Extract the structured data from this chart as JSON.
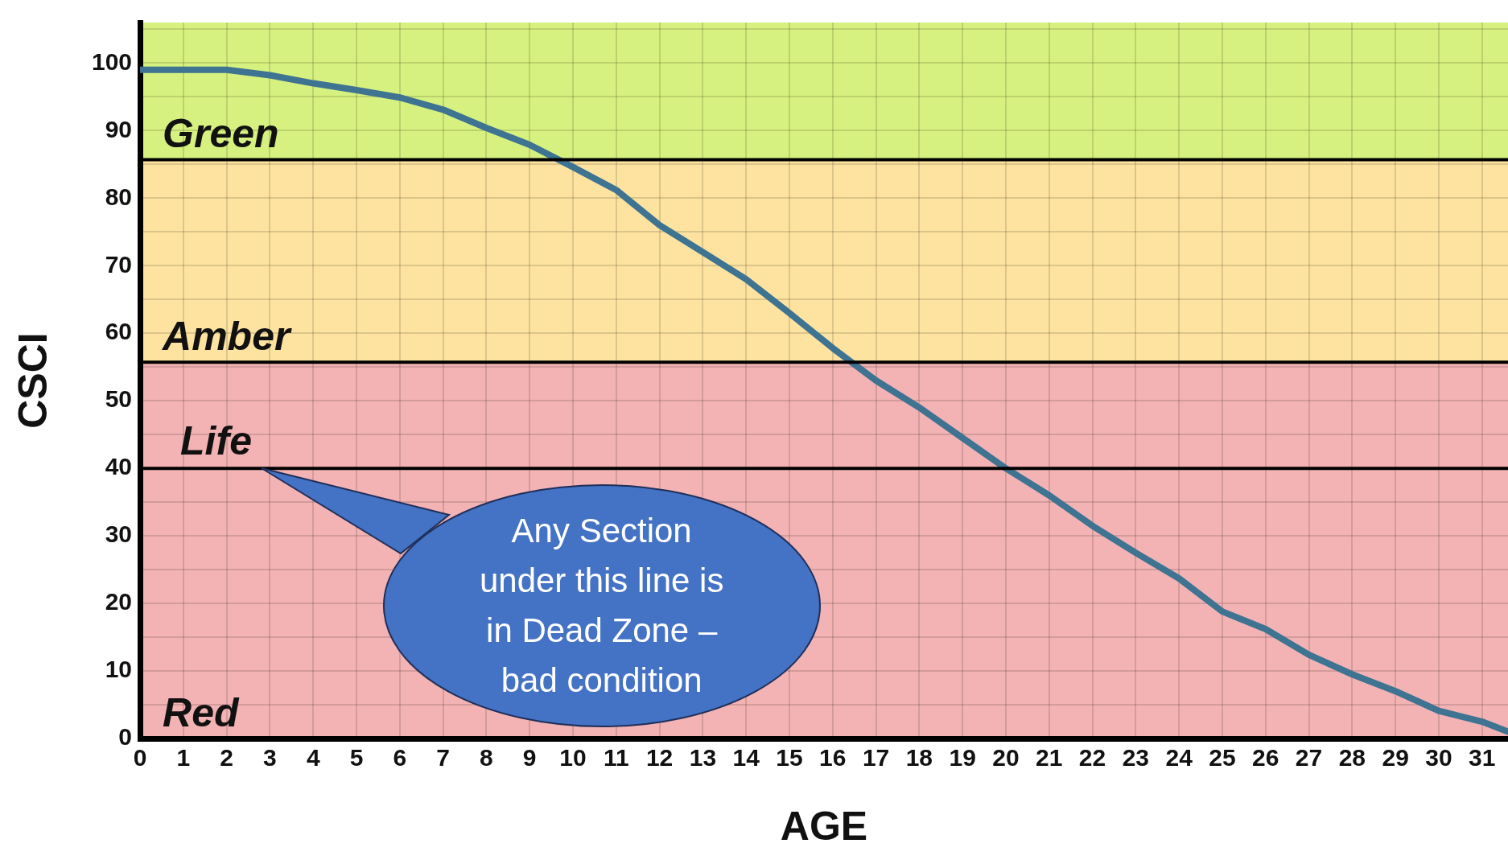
{
  "chart_data": {
    "type": "line",
    "xlabel": "AGE",
    "ylabel": "CSCI",
    "color": "#3e7392",
    "marker": "none",
    "grid": true,
    "x": [
      0,
      2,
      3,
      4,
      5,
      6,
      7,
      8,
      9,
      10,
      11,
      12,
      13,
      14,
      15,
      16,
      17,
      18,
      19,
      20,
      21,
      22,
      23,
      24,
      25,
      26,
      27,
      28,
      29,
      30,
      31,
      31.6
    ],
    "values": [
      99,
      99,
      98.2,
      97,
      96,
      94.9,
      93.1,
      90.4,
      87.9,
      84.6,
      81.2,
      76,
      72,
      68,
      63,
      57.8,
      53,
      49,
      44.5,
      40,
      36,
      31.5,
      27.5,
      23.7,
      18.8,
      16.2,
      12.4,
      9.5,
      7,
      4.1,
      2.5,
      1
    ],
    "xlim": [
      0,
      31.6
    ],
    "xticks": [
      0,
      1,
      2,
      3,
      4,
      5,
      6,
      7,
      8,
      9,
      10,
      11,
      12,
      13,
      14,
      15,
      16,
      17,
      18,
      19,
      20,
      21,
      22,
      23,
      24,
      25,
      26,
      27,
      28,
      29,
      30,
      31
    ],
    "ylim": [
      0,
      106
    ],
    "yticks": [
      0,
      {
        "value": 5,
        "label": null
      },
      10,
      {
        "value": 15,
        "label": null
      },
      20,
      {
        "value": 25,
        "label": null
      },
      30,
      {
        "value": 35,
        "label": null
      },
      40,
      {
        "value": 45,
        "label": null
      },
      50,
      {
        "value": 55,
        "label": null
      },
      60,
      {
        "value": 65,
        "label": null
      },
      70,
      {
        "value": 75,
        "label": null
      },
      80,
      {
        "value": 85,
        "label": null
      },
      90,
      {
        "value": 95,
        "label": null
      },
      100,
      {
        "value": 105,
        "label": null
      }
    ],
    "bands": [
      {
        "axis": "y",
        "from": 85.7,
        "to": 106,
        "label": "Green",
        "color": "#d6f17f"
      },
      {
        "axis": "y",
        "from": 55.7,
        "to": 85.7,
        "label": "Amber",
        "color": "#fde39f"
      },
      {
        "axis": "y",
        "from": 0,
        "to": 55.7,
        "label": "Red",
        "color": "#f3b2b3"
      }
    ],
    "ref_lines": [
      {
        "axis": "y",
        "value": 85.7
      },
      {
        "axis": "y",
        "value": 55.7
      },
      {
        "axis": "y",
        "value": 40,
        "label": "Life"
      }
    ],
    "annotations": [
      {
        "text": "Any Section under this line is in Dead Zone – bad condition",
        "x": 2.8,
        "y": 40
      }
    ]
  }
}
